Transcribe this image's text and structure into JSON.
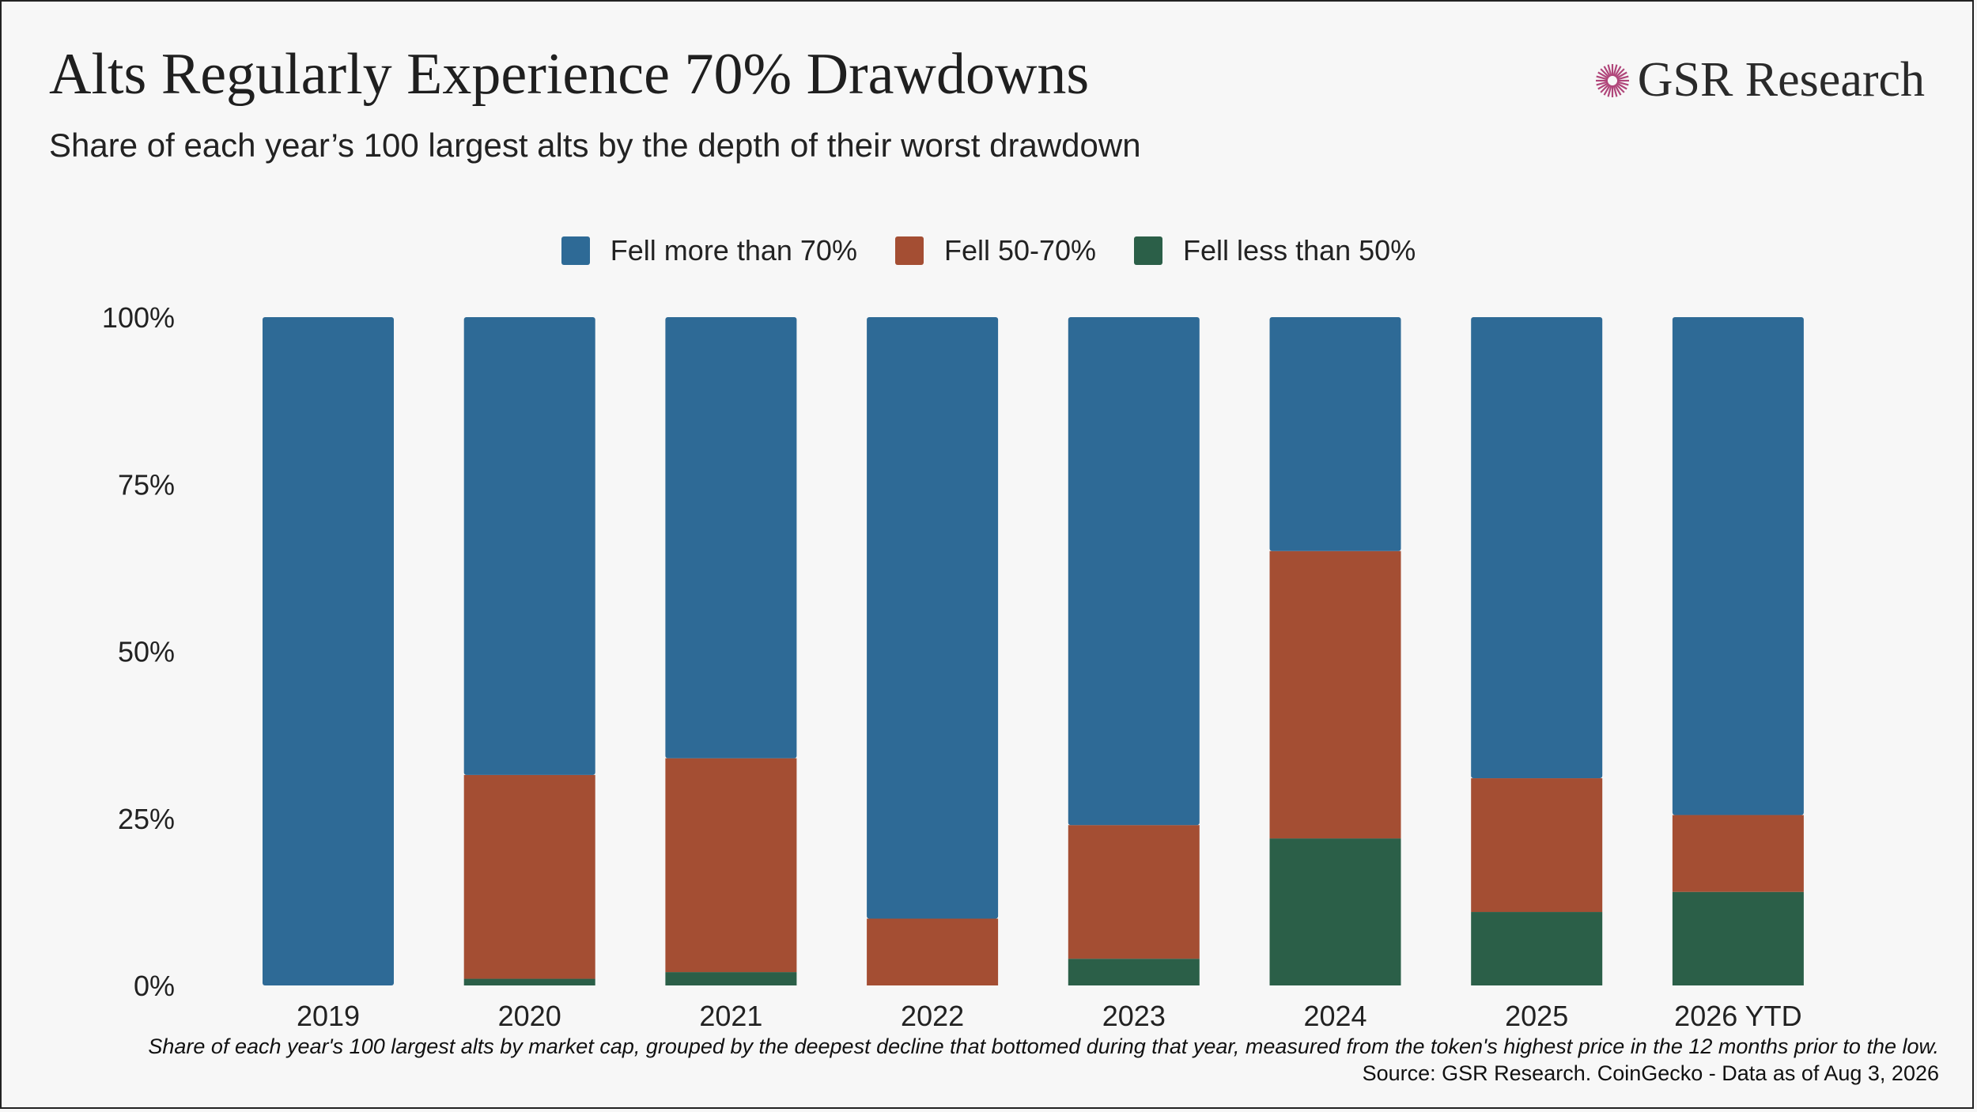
{
  "title": "Alts Regularly Experience 70% Drawdowns",
  "subtitle": "Share of each year’s 100 largest alts by the depth of their worst drawdown",
  "brand": {
    "name": "GSR Research",
    "icon": "starburst-icon",
    "icon_color": "#b0467a"
  },
  "footnote": "Share of each year's 100 largest alts by market cap, grouped by the deepest decline that bottomed during that year, measured from the token's highest price in the 12 months prior to the low.",
  "source": "Source: GSR Research. CoinGecko - Data as of Aug 3, 2026",
  "chart_data": {
    "type": "bar",
    "stacked": true,
    "categories": [
      "2019",
      "2020",
      "2021",
      "2022",
      "2023",
      "2024",
      "2025",
      "2026 YTD"
    ],
    "series": [
      {
        "name": "Fell more than 70%",
        "color": "#2e6a96",
        "values": [
          100,
          68.5,
          66,
          90,
          76,
          35,
          69,
          74.5
        ]
      },
      {
        "name": "Fell 50-70%",
        "color": "#a44e33",
        "values": [
          0,
          30.5,
          32,
          10,
          20,
          43,
          20,
          11.5
        ]
      },
      {
        "name": "Fell less than 50%",
        "color": "#2b5f48",
        "values": [
          0,
          1,
          2,
          0,
          4,
          22,
          11,
          14
        ]
      }
    ],
    "yticks": [
      "0%",
      "25%",
      "50%",
      "75%",
      "100%"
    ],
    "ylim": [
      0,
      100
    ],
    "grid": false,
    "legend_position": "top-center"
  }
}
